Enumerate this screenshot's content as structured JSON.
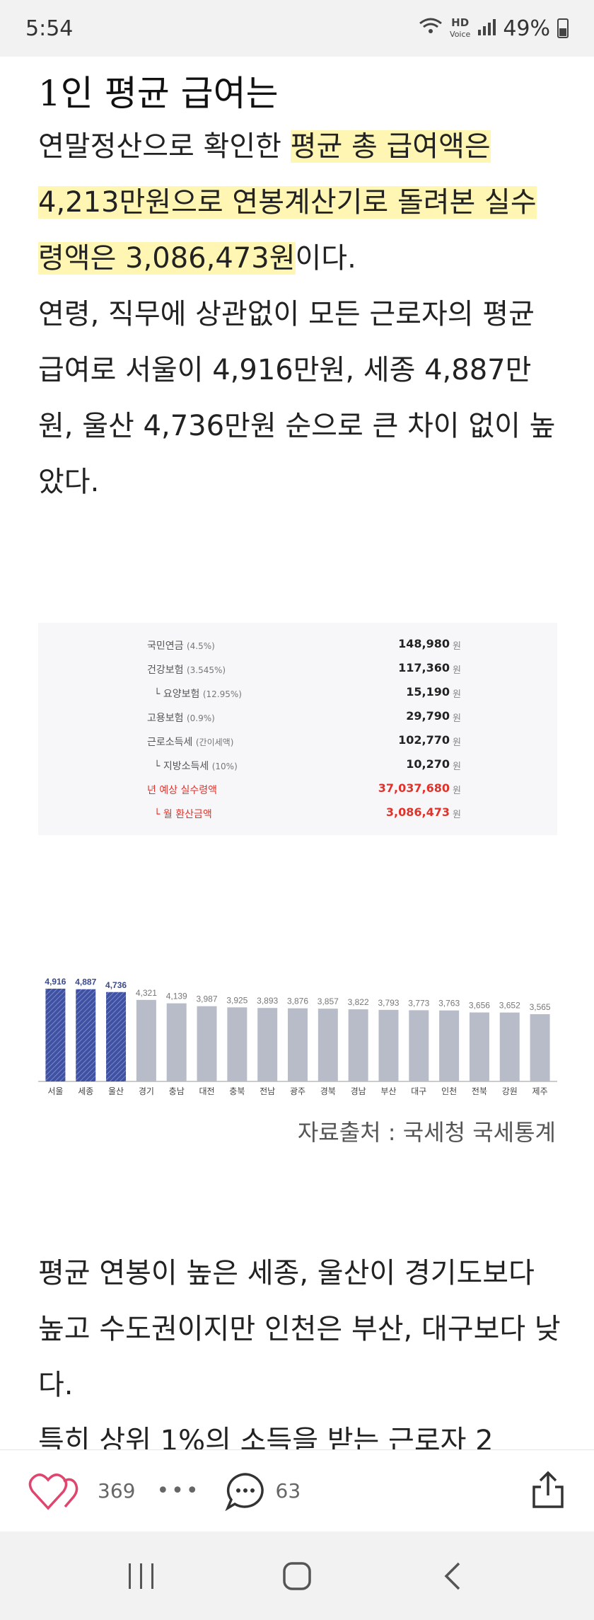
{
  "status": {
    "time": "5:54",
    "hd_top": "HD",
    "hd_bottom": "Voice",
    "battery": "49%"
  },
  "article": {
    "heading": "1인 평균 급여는",
    "p1_pre": "연말정산으로 확인한 ",
    "p1_hl": "평균 총 급여액은 4,213만원으로 연봉계산기로 돌려본 실수령액은 3,086,473원",
    "p1_post": "이다.",
    "p2": "연령, 직무에 상관없이 모든 근로자의 평균 급여로 서울이 4,916만원, 세종 4,887만원, 울산 4,736만원 순으로 큰 차이 없이 높았다.",
    "p3": "평균 연봉이 높은 세종, 울산이 경기도보다 높고 수도권이지만 인천은 부산, 대구보다 낮다.",
    "p4": "특히 상위 1%의 소득을 받는 근로자 2"
  },
  "tax_table": {
    "unit": "원",
    "rows": [
      {
        "label": "국민연금",
        "note": "(4.5%)",
        "value": "148,980",
        "sub": false,
        "red": false
      },
      {
        "label": "건강보험",
        "note": "(3.545%)",
        "value": "117,360",
        "sub": false,
        "red": false
      },
      {
        "label": "요양보험",
        "note": "(12.95%)",
        "value": "15,190",
        "sub": true,
        "red": false
      },
      {
        "label": "고용보험",
        "note": "(0.9%)",
        "value": "29,790",
        "sub": false,
        "red": false
      },
      {
        "label": "근로소득세",
        "note": "(간이세액)",
        "value": "102,770",
        "sub": false,
        "red": false
      },
      {
        "label": "지방소득세",
        "note": "(10%)",
        "value": "10,270",
        "sub": true,
        "red": false
      },
      {
        "label": "년 예상 실수령액",
        "note": "",
        "value": "37,037,680",
        "sub": false,
        "red": true
      },
      {
        "label": "월 환산금액",
        "note": "",
        "value": "3,086,473",
        "sub": true,
        "red": true
      }
    ]
  },
  "chart_data": {
    "type": "bar",
    "categories": [
      "서울",
      "세종",
      "울산",
      "경기",
      "충남",
      "대전",
      "충북",
      "전남",
      "광주",
      "경북",
      "경남",
      "부산",
      "대구",
      "인천",
      "전북",
      "강원",
      "제주"
    ],
    "values": [
      4916,
      4887,
      4736,
      4321,
      4139,
      3987,
      3925,
      3893,
      3876,
      3857,
      3822,
      3793,
      3773,
      3763,
      3656,
      3652,
      3565
    ],
    "value_labels": [
      "4,916",
      "4,887",
      "4,736",
      "4,321",
      "4,139",
      "3,987",
      "3,925",
      "3,893",
      "3,876",
      "3,857",
      "3,822",
      "3,793",
      "3,773",
      "3,763",
      "3,656",
      "3,652",
      "3,565"
    ],
    "ylim": [
      0,
      5000
    ],
    "highlight_count": 3,
    "colors": {
      "highlight": "#3f51a3",
      "normal": "#b8bcc8"
    }
  },
  "source": "자료출처 : 국세청 국세통계",
  "actions": {
    "likes": "369",
    "comments": "63"
  },
  "colors": {
    "heart": "#e0456e",
    "highlight_bg": "#fff6b3",
    "red_text": "#e0322a"
  }
}
